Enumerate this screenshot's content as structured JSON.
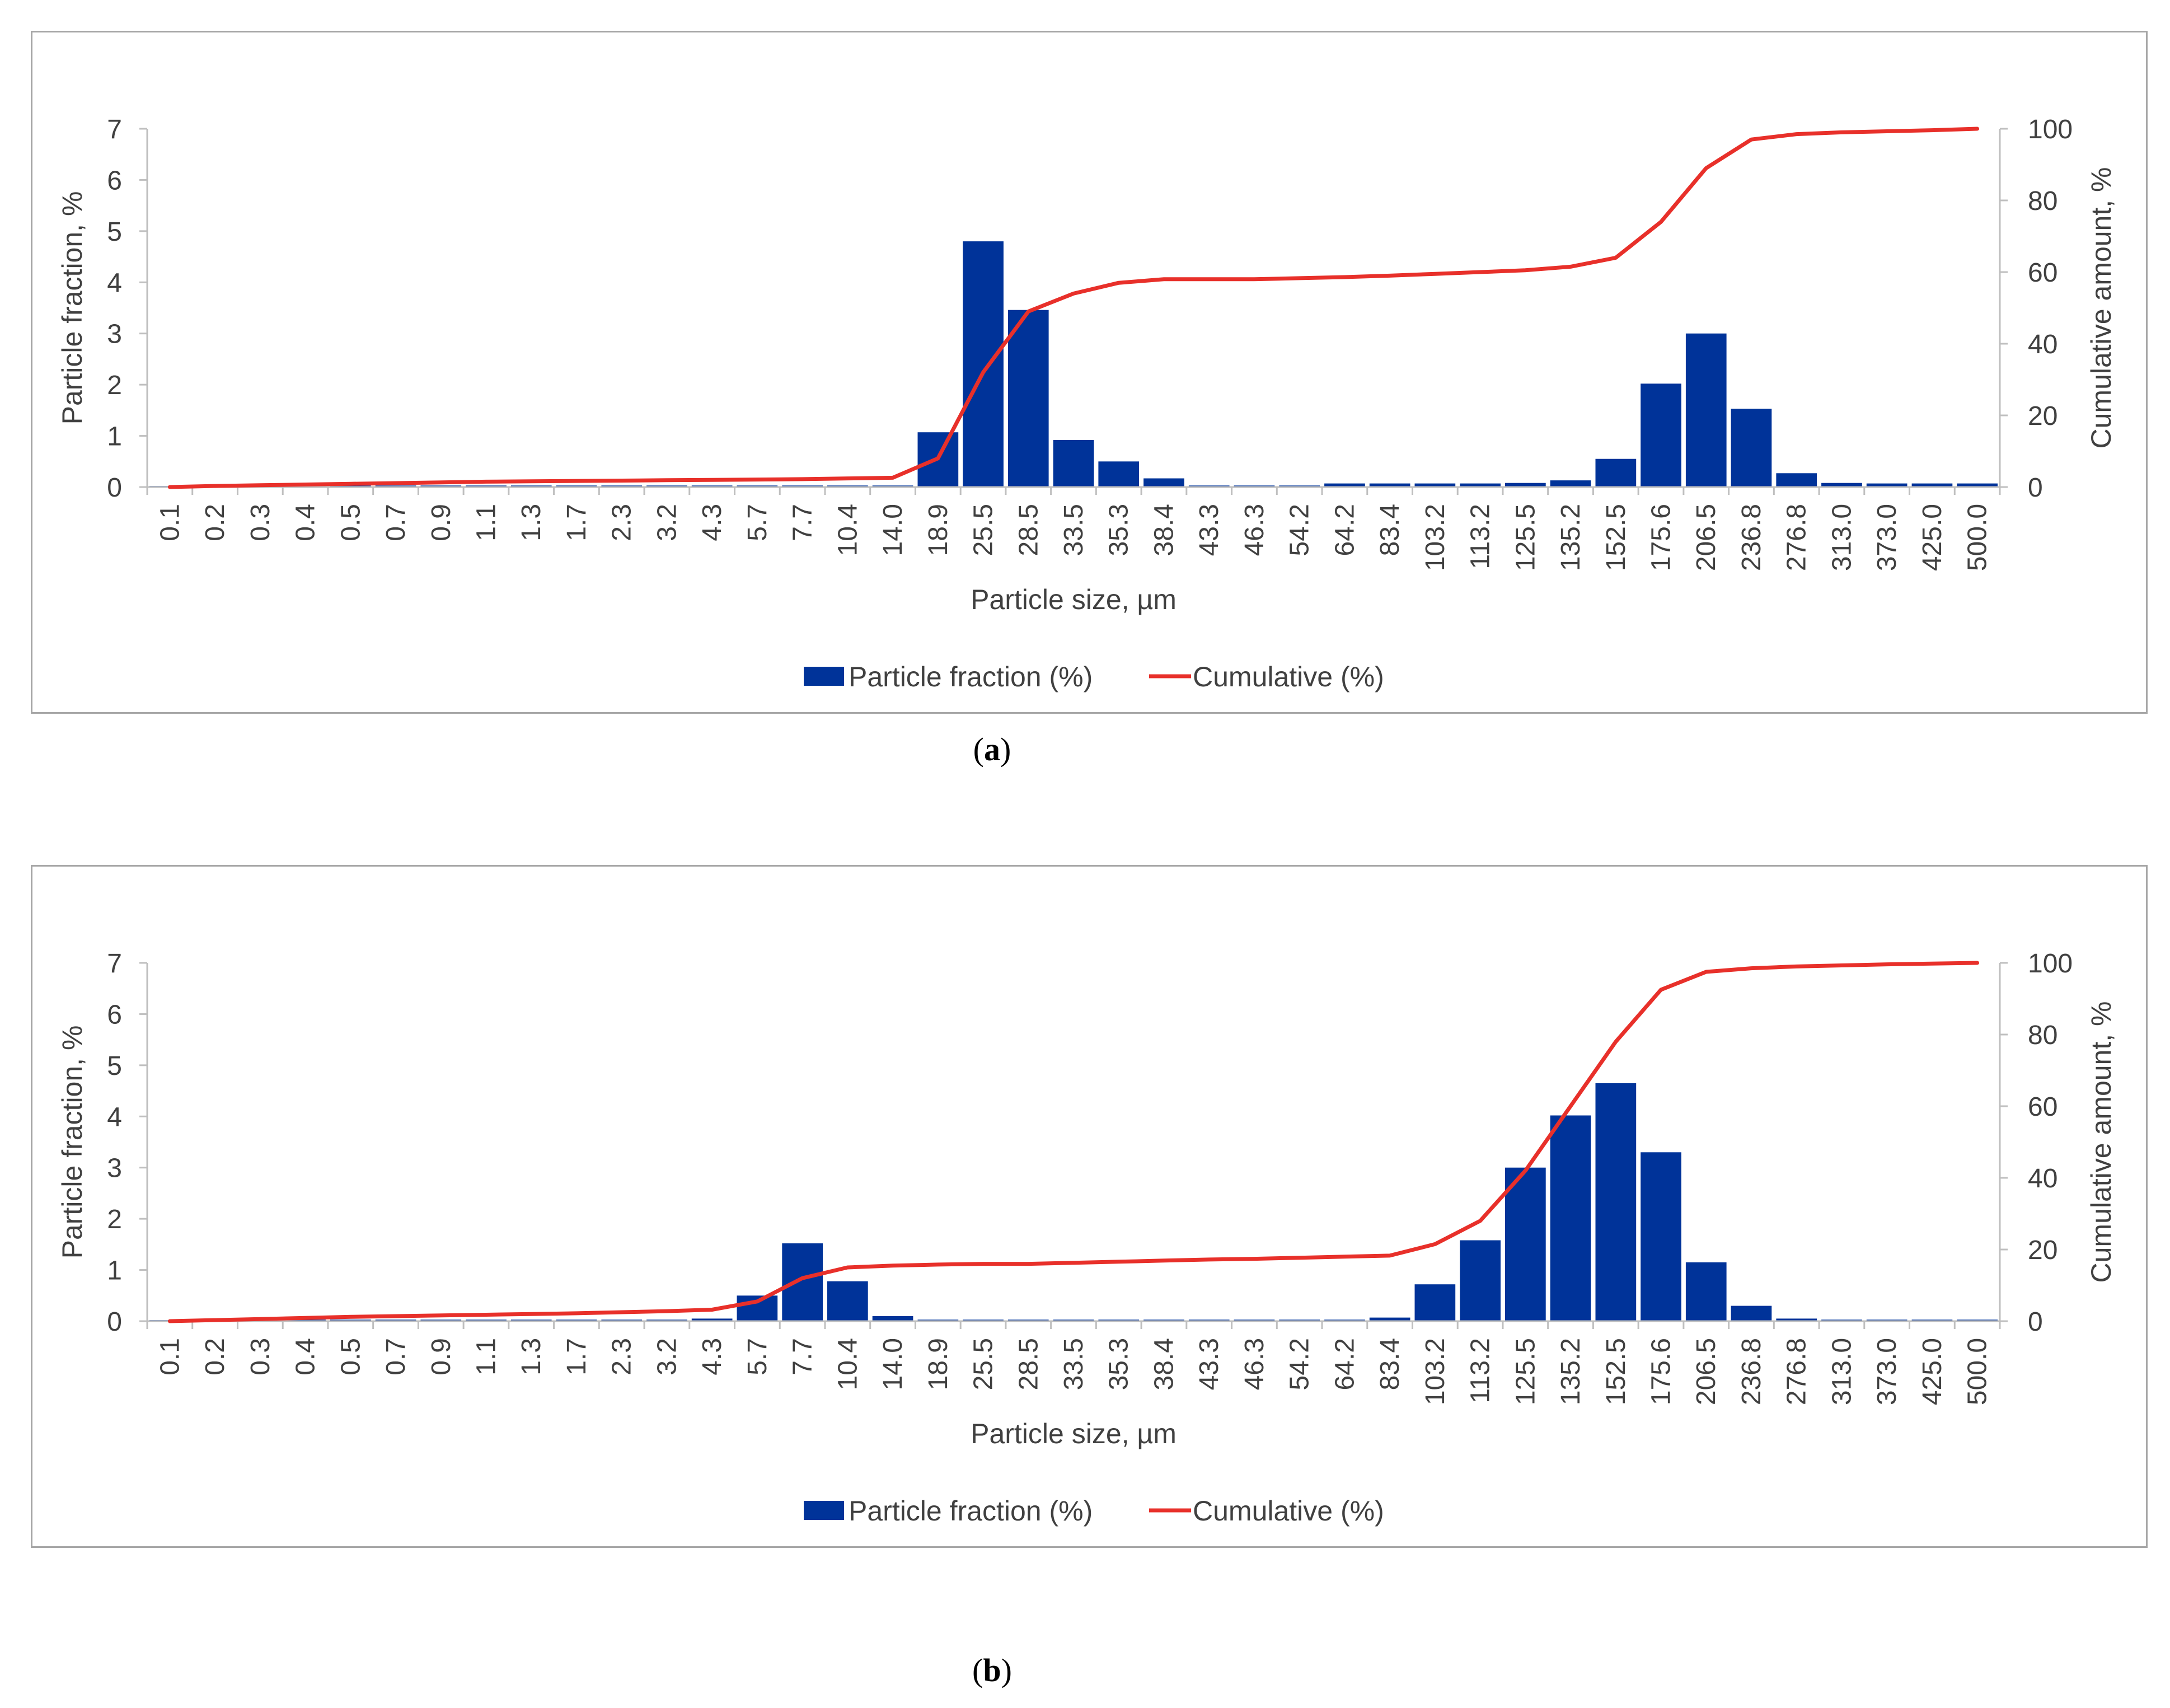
{
  "figures": [
    {
      "caption_letter": "a",
      "chart_data": {
        "type": "bar",
        "categories": [
          "0.1",
          "0.2",
          "0.3",
          "0.4",
          "0.5",
          "0.7",
          "0.9",
          "1.1",
          "1.3",
          "1.7",
          "2.3",
          "3.2",
          "4.3",
          "5.7",
          "7.7",
          "10.4",
          "14.0",
          "18.9",
          "25.5",
          "28.5",
          "33.5",
          "35.3",
          "38.4",
          "43.3",
          "46.3",
          "54.2",
          "64.2",
          "83.4",
          "103.2",
          "113.2",
          "125.5",
          "135.2",
          "152.5",
          "175.6",
          "206.5",
          "236.8",
          "276.8",
          "313.0",
          "373.0",
          "425.0",
          "500.0"
        ],
        "series": [
          {
            "name": "Particle fraction (%)",
            "kind": "bar",
            "axis": "left",
            "values": [
              0.02,
              0.02,
              0.02,
              0.02,
              0.03,
              0.03,
              0.03,
              0.03,
              0.03,
              0.03,
              0.03,
              0.03,
              0.03,
              0.03,
              0.03,
              0.03,
              0.03,
              1.07,
              4.8,
              3.46,
              0.92,
              0.5,
              0.17,
              0.03,
              0.03,
              0.03,
              0.07,
              0.07,
              0.07,
              0.07,
              0.08,
              0.13,
              0.55,
              2.02,
              3.0,
              1.53,
              0.27,
              0.08,
              0.07,
              0.07,
              0.07
            ]
          },
          {
            "name": "Cumulative (%)",
            "kind": "line",
            "axis": "right",
            "values": [
              0,
              0.3,
              0.5,
              0.7,
              0.9,
              1.1,
              1.3,
              1.5,
              1.6,
              1.7,
              1.8,
              1.9,
              2.0,
              2.1,
              2.2,
              2.4,
              2.6,
              8,
              32,
              49,
              54,
              57,
              58,
              58,
              58,
              58.3,
              58.6,
              59,
              59.5,
              60,
              60.5,
              61.5,
              64,
              74,
              89,
              97,
              98.5,
              99,
              99.3,
              99.6,
              100
            ]
          }
        ],
        "xlabel": "Particle size, µm",
        "ylabel_left": "Particle fraction, %",
        "ylabel_right": "Cumulative amount, %",
        "ylim_left": [
          0,
          7
        ],
        "ylim_right": [
          0,
          100
        ],
        "yticks_left": [
          "0",
          "1",
          "2",
          "3",
          "4",
          "5",
          "6",
          "7"
        ],
        "yticks_right": [
          "0",
          "20",
          "40",
          "60",
          "80",
          "100"
        ],
        "legend_position": "bottom",
        "colors": {
          "bar": "#003399",
          "line": "#e8302a",
          "axis": "#bfbfbf"
        }
      }
    },
    {
      "caption_letter": "b",
      "chart_data": {
        "type": "bar",
        "categories": [
          "0.1",
          "0.2",
          "0.3",
          "0.4",
          "0.5",
          "0.7",
          "0.9",
          "1.1",
          "1.3",
          "1.7",
          "2.3",
          "3.2",
          "4.3",
          "5.7",
          "7.7",
          "10.4",
          "14.0",
          "18.9",
          "25.5",
          "28.5",
          "33.5",
          "35.3",
          "38.4",
          "43.3",
          "46.3",
          "54.2",
          "64.2",
          "83.4",
          "103.2",
          "113.2",
          "125.5",
          "135.2",
          "152.5",
          "175.6",
          "206.5",
          "236.8",
          "276.8",
          "313.0",
          "373.0",
          "425.0",
          "500.0"
        ],
        "series": [
          {
            "name": "Particle fraction (%)",
            "kind": "bar",
            "axis": "left",
            "values": [
              0.02,
              0.02,
              0.03,
              0.03,
              0.03,
              0.03,
              0.03,
              0.03,
              0.03,
              0.03,
              0.03,
              0.03,
              0.05,
              0.5,
              1.52,
              0.78,
              0.1,
              0.03,
              0.03,
              0.03,
              0.03,
              0.03,
              0.03,
              0.03,
              0.03,
              0.03,
              0.03,
              0.07,
              0.72,
              1.58,
              3.0,
              4.02,
              4.65,
              3.3,
              1.15,
              0.3,
              0.05,
              0.03,
              0.03,
              0.03,
              0.03
            ]
          },
          {
            "name": "Cumulative (%)",
            "kind": "line",
            "axis": "right",
            "values": [
              0,
              0.3,
              0.6,
              0.9,
              1.2,
              1.4,
              1.6,
              1.8,
              2.0,
              2.2,
              2.5,
              2.8,
              3.2,
              5.5,
              12,
              15,
              15.5,
              15.8,
              16,
              16,
              16.3,
              16.6,
              16.9,
              17.2,
              17.4,
              17.7,
              18,
              18.3,
              21.5,
              28,
              42,
              60,
              78,
              92.5,
              97.5,
              98.5,
              99,
              99.3,
              99.6,
              99.8,
              100
            ]
          }
        ],
        "xlabel": "Particle size, µm",
        "ylabel_left": "Particle fraction, %",
        "ylabel_right": "Cumulative amount, %",
        "ylim_left": [
          0,
          7
        ],
        "ylim_right": [
          0,
          100
        ],
        "yticks_left": [
          "0",
          "1",
          "2",
          "3",
          "4",
          "5",
          "6",
          "7"
        ],
        "yticks_right": [
          "0",
          "20",
          "40",
          "60",
          "80",
          "100"
        ],
        "legend_position": "bottom",
        "colors": {
          "bar": "#003399",
          "line": "#e8302a",
          "axis": "#bfbfbf"
        }
      }
    }
  ]
}
